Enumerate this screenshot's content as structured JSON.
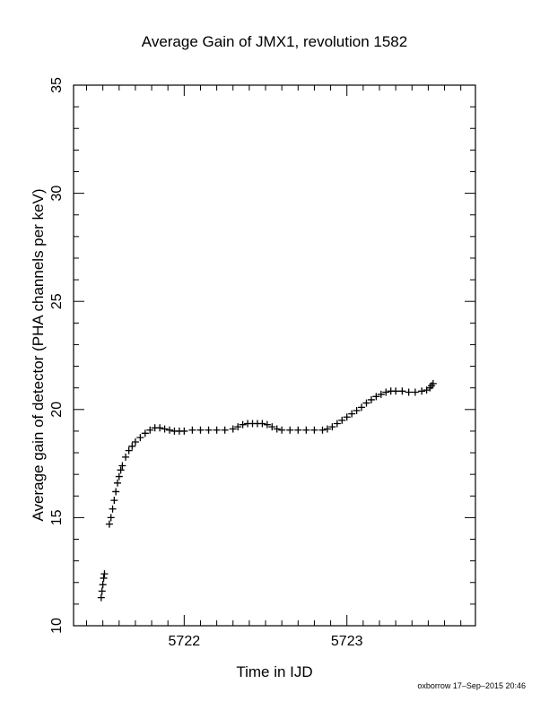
{
  "chart_data": {
    "type": "scatter",
    "title": "Average Gain of JMX1, revolution 1582",
    "xlabel": "Time in IJD",
    "ylabel": "Average gain of detector (PHA channels per keV)",
    "xlim": [
      5721.32,
      5723.79
    ],
    "ylim": [
      10,
      35
    ],
    "xticks": [
      5722,
      5723
    ],
    "yticks": [
      10,
      15,
      20,
      25,
      30,
      35
    ],
    "marker": "plus",
    "points": [
      [
        5721.49,
        11.3
      ],
      [
        5721.495,
        11.6
      ],
      [
        5721.5,
        11.9
      ],
      [
        5721.505,
        12.2
      ],
      [
        5721.51,
        12.4
      ],
      [
        5721.54,
        14.7
      ],
      [
        5721.55,
        15.0
      ],
      [
        5721.56,
        15.4
      ],
      [
        5721.57,
        15.8
      ],
      [
        5721.58,
        16.2
      ],
      [
        5721.59,
        16.6
      ],
      [
        5721.6,
        16.9
      ],
      [
        5721.61,
        17.2
      ],
      [
        5721.62,
        17.4
      ],
      [
        5721.64,
        17.8
      ],
      [
        5721.66,
        18.1
      ],
      [
        5721.68,
        18.3
      ],
      [
        5721.7,
        18.5
      ],
      [
        5721.73,
        18.7
      ],
      [
        5721.76,
        18.9
      ],
      [
        5721.79,
        19.05
      ],
      [
        5721.82,
        19.15
      ],
      [
        5721.85,
        19.15
      ],
      [
        5721.88,
        19.1
      ],
      [
        5721.91,
        19.05
      ],
      [
        5721.94,
        19.0
      ],
      [
        5721.97,
        19.0
      ],
      [
        5722.0,
        19.0
      ],
      [
        5722.05,
        19.05
      ],
      [
        5722.1,
        19.05
      ],
      [
        5722.15,
        19.05
      ],
      [
        5722.2,
        19.05
      ],
      [
        5722.25,
        19.05
      ],
      [
        5722.3,
        19.1
      ],
      [
        5722.33,
        19.2
      ],
      [
        5722.36,
        19.3
      ],
      [
        5722.39,
        19.35
      ],
      [
        5722.42,
        19.35
      ],
      [
        5722.45,
        19.35
      ],
      [
        5722.48,
        19.35
      ],
      [
        5722.51,
        19.3
      ],
      [
        5722.54,
        19.2
      ],
      [
        5722.57,
        19.1
      ],
      [
        5722.6,
        19.05
      ],
      [
        5722.65,
        19.05
      ],
      [
        5722.7,
        19.05
      ],
      [
        5722.75,
        19.05
      ],
      [
        5722.8,
        19.05
      ],
      [
        5722.85,
        19.05
      ],
      [
        5722.88,
        19.1
      ],
      [
        5722.91,
        19.2
      ],
      [
        5722.94,
        19.35
      ],
      [
        5722.97,
        19.5
      ],
      [
        5723.0,
        19.65
      ],
      [
        5723.03,
        19.8
      ],
      [
        5723.06,
        19.95
      ],
      [
        5723.09,
        20.1
      ],
      [
        5723.12,
        20.3
      ],
      [
        5723.15,
        20.45
      ],
      [
        5723.18,
        20.6
      ],
      [
        5723.21,
        20.7
      ],
      [
        5723.24,
        20.8
      ],
      [
        5723.27,
        20.85
      ],
      [
        5723.3,
        20.85
      ],
      [
        5723.34,
        20.85
      ],
      [
        5723.38,
        20.8
      ],
      [
        5723.42,
        20.8
      ],
      [
        5723.46,
        20.85
      ],
      [
        5723.49,
        20.9
      ],
      [
        5723.51,
        21.0
      ],
      [
        5723.52,
        21.1
      ],
      [
        5723.53,
        21.2
      ]
    ]
  },
  "footer": {
    "stamp": "oxborrow 17–Sep–2015 20:46"
  }
}
